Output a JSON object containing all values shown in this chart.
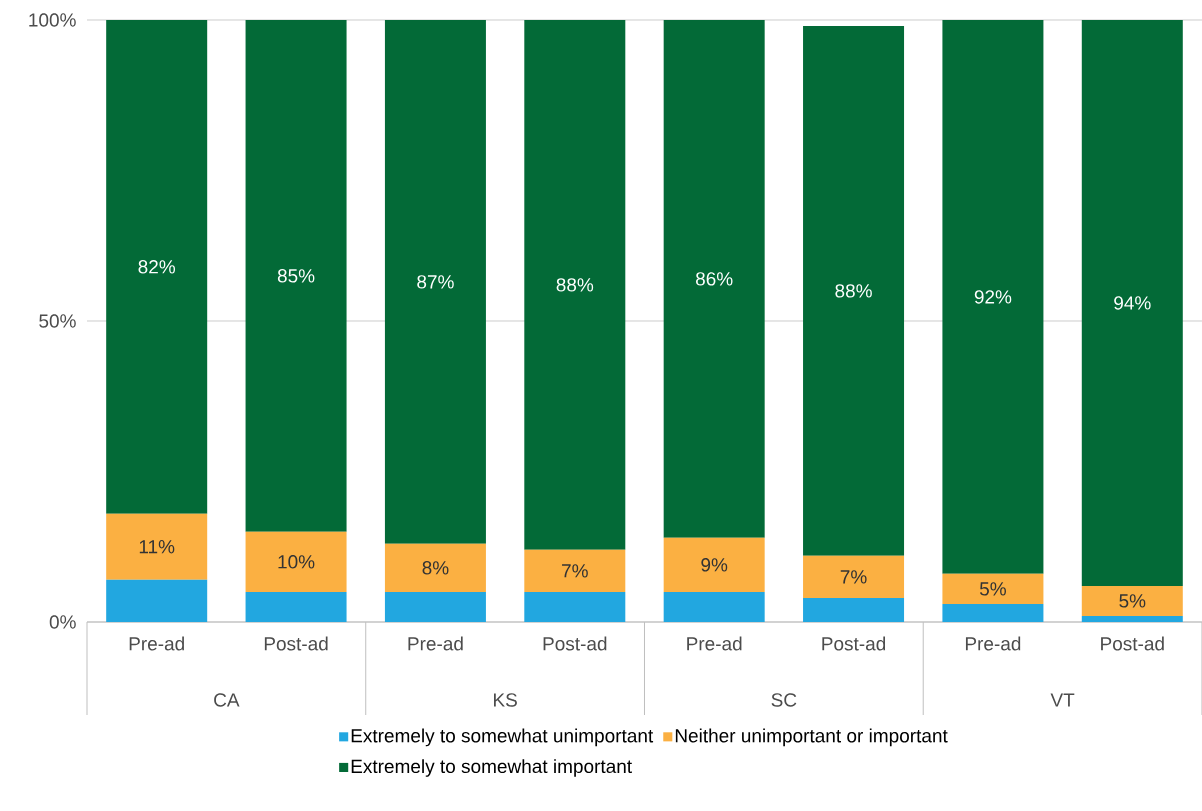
{
  "chart_data": {
    "type": "bar",
    "stacked": true,
    "categories": [
      "Pre-ad",
      "Post-ad",
      "Pre-ad",
      "Post-ad",
      "Pre-ad",
      "Post-ad",
      "Pre-ad",
      "Post-ad"
    ],
    "annotations": [
      "CA",
      "KS",
      "SC",
      "VT"
    ],
    "series": [
      {
        "name": "Extremely to somewhat unimportant",
        "color": "#22a7e0",
        "values": [
          7,
          5,
          5,
          5,
          5,
          4,
          3,
          1
        ],
        "value_labels": [
          null,
          null,
          null,
          null,
          null,
          null,
          null,
          null
        ]
      },
      {
        "name": "Neither unimportant or important",
        "color": "#fbb042",
        "values": [
          11,
          10,
          8,
          7,
          9,
          7,
          5,
          5
        ],
        "value_labels": [
          "11%",
          "10%",
          "8%",
          "7%",
          "9%",
          "7%",
          "5%",
          "5%"
        ]
      },
      {
        "name": "Extremely to somewhat important",
        "color": "#036a37",
        "values": [
          82,
          85,
          87,
          88,
          86,
          88,
          92,
          94
        ],
        "value_labels": [
          "82%",
          "85%",
          "87%",
          "88%",
          "86%",
          "88%",
          "92%",
          "94%"
        ]
      }
    ],
    "ylim": [
      0,
      100
    ],
    "yticks": [
      {
        "value": 0,
        "label": "0%"
      },
      {
        "value": 50,
        "label": "50%"
      },
      {
        "value": 100,
        "label": "100%"
      }
    ],
    "grid": "y",
    "legend": "bottom"
  }
}
